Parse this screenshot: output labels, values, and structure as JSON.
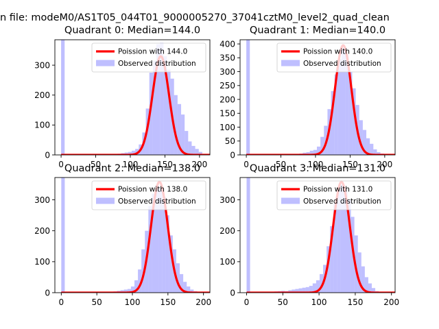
{
  "figure": {
    "suptitle": "n file: modeM0/AS1T05_044T01_9000005270_37041cztM0_level2_quad_clean",
    "colors": {
      "hist": "#7f7fff",
      "hist_opacity": 0.5,
      "poisson": "#ff0000"
    }
  },
  "chart_data": [
    {
      "type": "bar",
      "title": "Quadrant 0: Median=144.0",
      "xlim": [
        -9,
        215
      ],
      "ylim": [
        0,
        385
      ],
      "xticks": [
        0,
        50,
        100,
        150,
        200
      ],
      "yticks": [
        0,
        100,
        200,
        300
      ],
      "legend_placement": "upper right",
      "legend": [
        "Poission with 144.0",
        "Observed distribution"
      ],
      "median": 144.0,
      "poisson_peak": 330,
      "hist": {
        "bin_width": 5.1,
        "bins": [
          {
            "x": 0,
            "y": 385
          },
          {
            "x": 76.5,
            "y": 2
          },
          {
            "x": 81.6,
            "y": 4
          },
          {
            "x": 86.7,
            "y": 6
          },
          {
            "x": 91.8,
            "y": 8
          },
          {
            "x": 96.9,
            "y": 10
          },
          {
            "x": 102,
            "y": 14
          },
          {
            "x": 107.1,
            "y": 20
          },
          {
            "x": 112.2,
            "y": 35
          },
          {
            "x": 117.3,
            "y": 75
          },
          {
            "x": 122.4,
            "y": 155
          },
          {
            "x": 127.5,
            "y": 275
          },
          {
            "x": 132.6,
            "y": 315
          },
          {
            "x": 137.7,
            "y": 370
          },
          {
            "x": 142.8,
            "y": 375
          },
          {
            "x": 147.9,
            "y": 330
          },
          {
            "x": 153,
            "y": 285
          },
          {
            "x": 158.1,
            "y": 255
          },
          {
            "x": 163.2,
            "y": 200
          },
          {
            "x": 168.3,
            "y": 170
          },
          {
            "x": 173.4,
            "y": 135
          },
          {
            "x": 178.5,
            "y": 80
          },
          {
            "x": 183.6,
            "y": 45
          },
          {
            "x": 188.7,
            "y": 30
          },
          {
            "x": 193.8,
            "y": 20
          },
          {
            "x": 198.9,
            "y": 10
          }
        ]
      }
    },
    {
      "type": "bar",
      "title": "Quadrant 1: Median=140.0",
      "xlim": [
        -9,
        215
      ],
      "ylim": [
        0,
        415
      ],
      "xticks": [
        0,
        50,
        100,
        150,
        200
      ],
      "yticks": [
        0,
        50,
        100,
        150,
        200,
        250,
        300,
        350,
        400
      ],
      "legend_placement": "upper right",
      "legend": [
        "Poission with 140.0",
        "Observed distribution"
      ],
      "median": 140.0,
      "poisson_peak": 395,
      "hist": {
        "bin_width": 5.1,
        "bins": [
          {
            "x": 0,
            "y": 415
          },
          {
            "x": 61.2,
            "y": 1
          },
          {
            "x": 66.3,
            "y": 2
          },
          {
            "x": 71.4,
            "y": 3
          },
          {
            "x": 76.5,
            "y": 5
          },
          {
            "x": 81.6,
            "y": 8
          },
          {
            "x": 86.7,
            "y": 10
          },
          {
            "x": 91.8,
            "y": 15
          },
          {
            "x": 96.9,
            "y": 18
          },
          {
            "x": 102,
            "y": 30
          },
          {
            "x": 107.1,
            "y": 65
          },
          {
            "x": 112.2,
            "y": 105
          },
          {
            "x": 117.3,
            "y": 165
          },
          {
            "x": 122.4,
            "y": 230
          },
          {
            "x": 127.5,
            "y": 290
          },
          {
            "x": 132.6,
            "y": 345
          },
          {
            "x": 137.7,
            "y": 390
          },
          {
            "x": 142.8,
            "y": 360
          },
          {
            "x": 147.9,
            "y": 300
          },
          {
            "x": 153,
            "y": 240
          },
          {
            "x": 158.1,
            "y": 180
          },
          {
            "x": 163.2,
            "y": 125
          },
          {
            "x": 168.3,
            "y": 90
          },
          {
            "x": 173.4,
            "y": 60
          },
          {
            "x": 178.5,
            "y": 40
          },
          {
            "x": 183.6,
            "y": 20
          },
          {
            "x": 188.7,
            "y": 10
          },
          {
            "x": 193.8,
            "y": 5
          }
        ]
      }
    },
    {
      "type": "bar",
      "title": "Quadrant 2: Median=138.0",
      "xlim": [
        -9,
        209
      ],
      "ylim": [
        0,
        372
      ],
      "xticks": [
        0,
        50,
        100,
        150,
        200
      ],
      "yticks": [
        0,
        100,
        200,
        300
      ],
      "legend_placement": "upper right",
      "legend": [
        "Poission with 138.0",
        "Observed distribution"
      ],
      "median": 138.0,
      "poisson_peak": 358,
      "hist": {
        "bin_width": 4.9,
        "bins": [
          {
            "x": 0,
            "y": 372
          },
          {
            "x": 53.9,
            "y": 1
          },
          {
            "x": 58.8,
            "y": 2
          },
          {
            "x": 63.7,
            "y": 2
          },
          {
            "x": 68.6,
            "y": 3
          },
          {
            "x": 73.5,
            "y": 4
          },
          {
            "x": 78.4,
            "y": 6
          },
          {
            "x": 83.3,
            "y": 8
          },
          {
            "x": 88.2,
            "y": 10
          },
          {
            "x": 93.1,
            "y": 12
          },
          {
            "x": 98,
            "y": 20
          },
          {
            "x": 102.9,
            "y": 40
          },
          {
            "x": 107.8,
            "y": 75
          },
          {
            "x": 112.7,
            "y": 140
          },
          {
            "x": 117.6,
            "y": 200
          },
          {
            "x": 122.5,
            "y": 280
          },
          {
            "x": 127.4,
            "y": 320
          },
          {
            "x": 132.3,
            "y": 345
          },
          {
            "x": 137.2,
            "y": 340
          },
          {
            "x": 142.1,
            "y": 310
          },
          {
            "x": 147,
            "y": 250
          },
          {
            "x": 151.9,
            "y": 185
          },
          {
            "x": 156.8,
            "y": 140
          },
          {
            "x": 161.7,
            "y": 95
          },
          {
            "x": 166.6,
            "y": 60
          },
          {
            "x": 171.5,
            "y": 35
          },
          {
            "x": 176.4,
            "y": 20
          },
          {
            "x": 181.3,
            "y": 10
          },
          {
            "x": 186.2,
            "y": 5
          },
          {
            "x": 191.1,
            "y": 2
          }
        ]
      }
    },
    {
      "type": "bar",
      "title": "Quadrant 3: Median=131.0",
      "xlim": [
        -9,
        205
      ],
      "ylim": [
        0,
        372
      ],
      "xticks": [
        0,
        50,
        100,
        150,
        200
      ],
      "yticks": [
        0,
        100,
        200,
        300
      ],
      "legend_placement": "upper right",
      "legend": [
        "Poission with 131.0",
        "Observed distribution"
      ],
      "median": 131.0,
      "poisson_peak": 358,
      "hist": {
        "bin_width": 4.8,
        "bins": [
          {
            "x": 0,
            "y": 372
          },
          {
            "x": 19.2,
            "y": 1
          },
          {
            "x": 24,
            "y": 2
          },
          {
            "x": 28.8,
            "y": 3
          },
          {
            "x": 33.6,
            "y": 3
          },
          {
            "x": 38.4,
            "y": 4
          },
          {
            "x": 43.2,
            "y": 5
          },
          {
            "x": 48,
            "y": 6
          },
          {
            "x": 52.8,
            "y": 5
          },
          {
            "x": 57.6,
            "y": 8
          },
          {
            "x": 62.4,
            "y": 10
          },
          {
            "x": 67.2,
            "y": 12
          },
          {
            "x": 72,
            "y": 14
          },
          {
            "x": 76.8,
            "y": 16
          },
          {
            "x": 81.6,
            "y": 18
          },
          {
            "x": 86.4,
            "y": 22
          },
          {
            "x": 91.2,
            "y": 30
          },
          {
            "x": 96,
            "y": 40
          },
          {
            "x": 100.8,
            "y": 60
          },
          {
            "x": 105.6,
            "y": 90
          },
          {
            "x": 110.4,
            "y": 150
          },
          {
            "x": 115.2,
            "y": 215
          },
          {
            "x": 120,
            "y": 290
          },
          {
            "x": 124.8,
            "y": 330
          },
          {
            "x": 129.6,
            "y": 350
          },
          {
            "x": 134.4,
            "y": 335
          },
          {
            "x": 139.2,
            "y": 300
          },
          {
            "x": 144,
            "y": 245
          },
          {
            "x": 148.8,
            "y": 185
          },
          {
            "x": 153.6,
            "y": 130
          },
          {
            "x": 158.4,
            "y": 85
          },
          {
            "x": 163.2,
            "y": 50
          },
          {
            "x": 168,
            "y": 30
          },
          {
            "x": 172.8,
            "y": 15
          },
          {
            "x": 177.6,
            "y": 5
          }
        ]
      }
    }
  ]
}
